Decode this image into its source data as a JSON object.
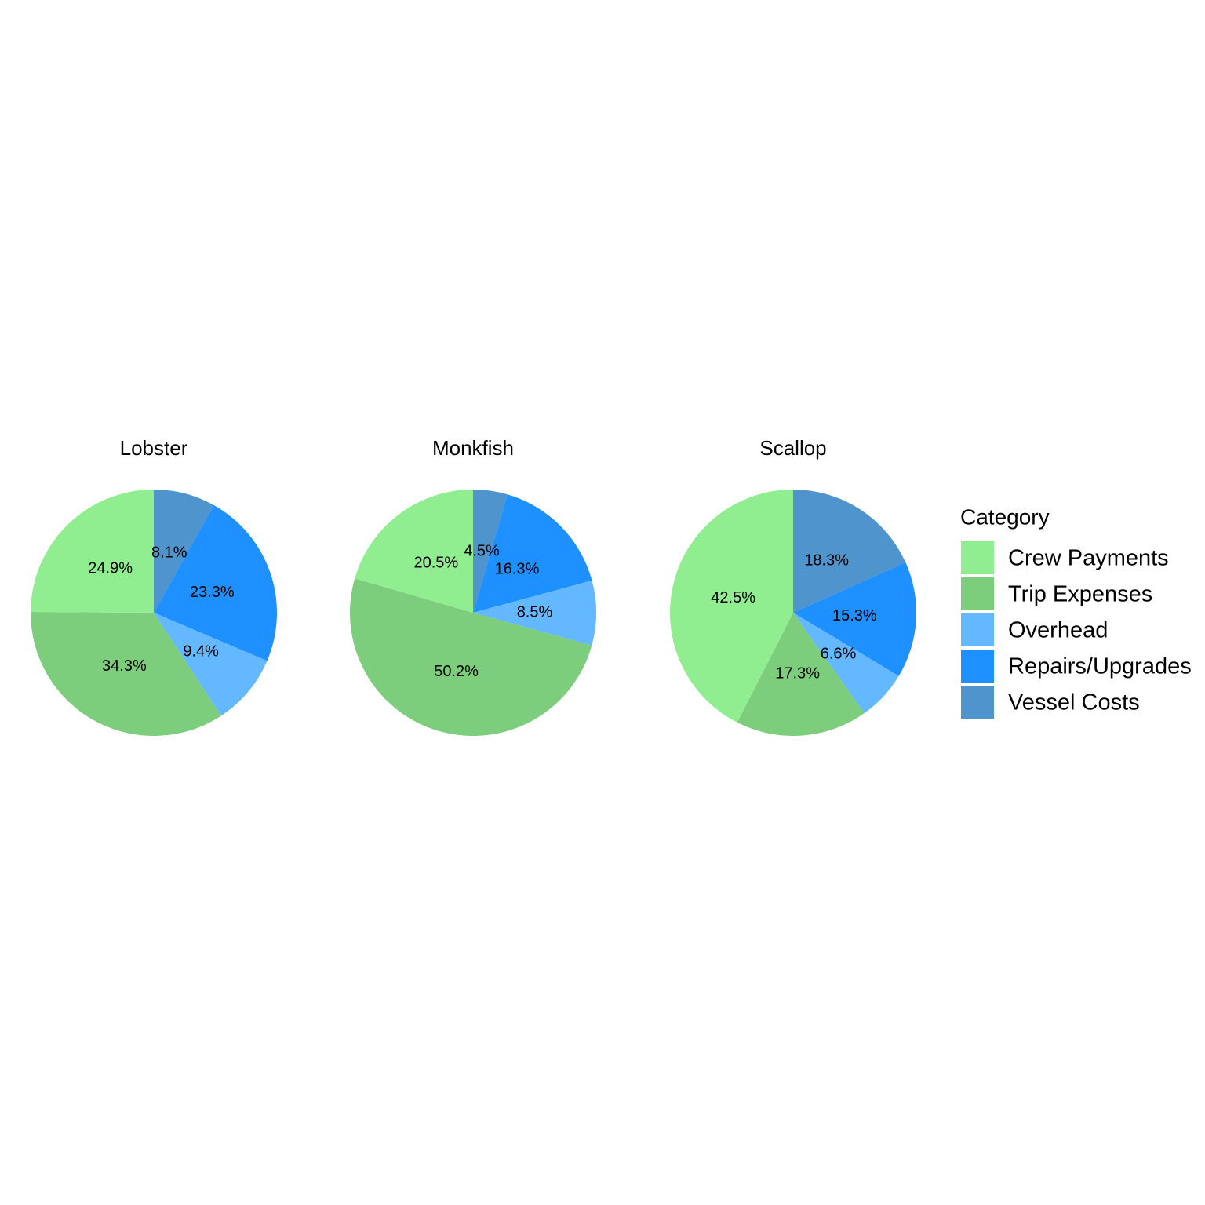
{
  "chart_data": [
    {
      "type": "pie",
      "title": "Lobster",
      "values": [
        24.9,
        34.3,
        9.4,
        23.3,
        8.1
      ],
      "value_labels": [
        "24.9%",
        "34.3%",
        "9.4%",
        "23.3%",
        "8.1%"
      ]
    },
    {
      "type": "pie",
      "title": "Monkfish",
      "values": [
        20.5,
        50.2,
        8.5,
        16.3,
        4.5
      ],
      "value_labels": [
        "20.5%",
        "50.2%",
        "8.5%",
        "16.3%",
        "4.5%"
      ]
    },
    {
      "type": "pie",
      "title": "Scallop",
      "values": [
        42.5,
        17.3,
        6.6,
        15.3,
        18.3
      ],
      "value_labels": [
        "42.5%",
        "17.3%",
        "6.6%",
        "15.3%",
        "18.3%"
      ]
    }
  ],
  "legend": {
    "title": "Category",
    "categories": [
      "Crew Payments",
      "Trip Expenses",
      "Overhead",
      "Repairs/Upgrades",
      "Vessel Costs"
    ],
    "colors": [
      "#90ee90",
      "#7ccd7c",
      "#63b8ff",
      "#1e90ff",
      "#4f94cd"
    ]
  }
}
